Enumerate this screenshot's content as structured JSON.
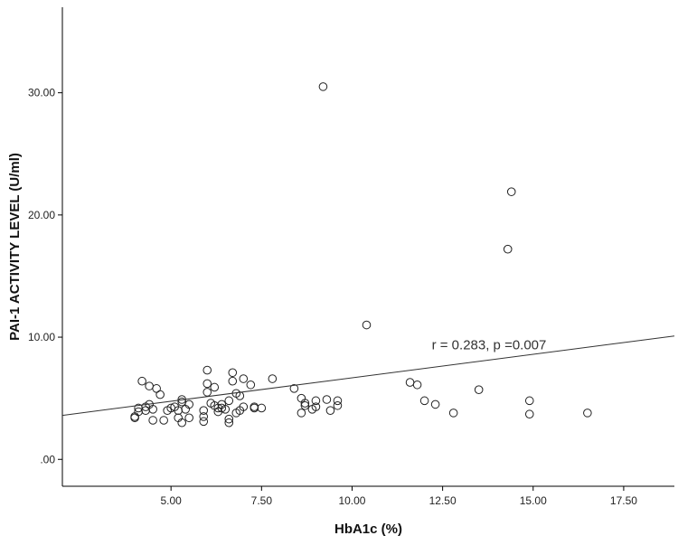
{
  "chart_data": {
    "type": "scatter",
    "title": "",
    "xlabel": "HbA1c (%)",
    "ylabel": "PAI-1 ACTIVITY LEVEL (U/ml)",
    "xlim": [
      2.0,
      18.9
    ],
    "ylim": [
      -2.2,
      37.0
    ],
    "x_ticks": [
      5,
      7.5,
      10,
      12.5,
      15,
      17.5
    ],
    "x_tick_labels": [
      "5.00",
      "7.50",
      "10.00",
      "12.50",
      "15.00",
      "17.50"
    ],
    "y_ticks": [
      0,
      10,
      20,
      30
    ],
    "y_tick_labels": [
      ".00",
      "10.00",
      "20.00",
      "30.00"
    ],
    "grid": false,
    "marker": "open-circle",
    "fit_line": {
      "x": [
        2.0,
        18.9
      ],
      "y": [
        3.6,
        10.1
      ]
    },
    "annotation": {
      "text": "r = 0.283, p =0.007",
      "x": 12.2,
      "y": 9.0
    },
    "points": [
      {
        "x": 4.0,
        "y": 3.4
      },
      {
        "x": 4.0,
        "y": 3.5
      },
      {
        "x": 4.1,
        "y": 4.2
      },
      {
        "x": 4.1,
        "y": 3.9
      },
      {
        "x": 4.2,
        "y": 6.4
      },
      {
        "x": 4.3,
        "y": 4.0
      },
      {
        "x": 4.3,
        "y": 4.3
      },
      {
        "x": 4.4,
        "y": 6.0
      },
      {
        "x": 4.4,
        "y": 4.5
      },
      {
        "x": 4.5,
        "y": 4.1
      },
      {
        "x": 4.5,
        "y": 3.2
      },
      {
        "x": 4.6,
        "y": 5.8
      },
      {
        "x": 4.7,
        "y": 5.3
      },
      {
        "x": 4.8,
        "y": 3.2
      },
      {
        "x": 4.9,
        "y": 4.0
      },
      {
        "x": 5.0,
        "y": 4.2
      },
      {
        "x": 5.1,
        "y": 4.3
      },
      {
        "x": 5.2,
        "y": 3.4
      },
      {
        "x": 5.2,
        "y": 4.0
      },
      {
        "x": 5.3,
        "y": 4.7
      },
      {
        "x": 5.3,
        "y": 4.9
      },
      {
        "x": 5.3,
        "y": 3.0
      },
      {
        "x": 5.4,
        "y": 4.1
      },
      {
        "x": 5.5,
        "y": 3.4
      },
      {
        "x": 5.5,
        "y": 4.5
      },
      {
        "x": 5.9,
        "y": 3.1
      },
      {
        "x": 5.9,
        "y": 3.5
      },
      {
        "x": 5.9,
        "y": 4.0
      },
      {
        "x": 6.0,
        "y": 7.3
      },
      {
        "x": 6.0,
        "y": 6.2
      },
      {
        "x": 6.0,
        "y": 5.5
      },
      {
        "x": 6.1,
        "y": 4.6
      },
      {
        "x": 6.2,
        "y": 4.4
      },
      {
        "x": 6.2,
        "y": 5.9
      },
      {
        "x": 6.3,
        "y": 4.2
      },
      {
        "x": 6.3,
        "y": 3.9
      },
      {
        "x": 6.4,
        "y": 4.5
      },
      {
        "x": 6.4,
        "y": 4.2
      },
      {
        "x": 6.5,
        "y": 4.1
      },
      {
        "x": 6.6,
        "y": 3.0
      },
      {
        "x": 6.6,
        "y": 3.3
      },
      {
        "x": 6.6,
        "y": 4.8
      },
      {
        "x": 6.7,
        "y": 7.1
      },
      {
        "x": 6.7,
        "y": 6.4
      },
      {
        "x": 6.8,
        "y": 5.4
      },
      {
        "x": 6.8,
        "y": 3.8
      },
      {
        "x": 6.9,
        "y": 4.0
      },
      {
        "x": 6.9,
        "y": 5.2
      },
      {
        "x": 7.0,
        "y": 6.6
      },
      {
        "x": 7.0,
        "y": 4.3
      },
      {
        "x": 7.2,
        "y": 6.1
      },
      {
        "x": 7.3,
        "y": 4.2
      },
      {
        "x": 7.3,
        "y": 4.3
      },
      {
        "x": 7.5,
        "y": 4.2
      },
      {
        "x": 7.8,
        "y": 6.6
      },
      {
        "x": 8.4,
        "y": 5.8
      },
      {
        "x": 8.6,
        "y": 5.0
      },
      {
        "x": 8.6,
        "y": 3.8
      },
      {
        "x": 8.7,
        "y": 4.4
      },
      {
        "x": 8.7,
        "y": 4.6
      },
      {
        "x": 8.9,
        "y": 4.1
      },
      {
        "x": 9.0,
        "y": 4.3
      },
      {
        "x": 9.0,
        "y": 4.8
      },
      {
        "x": 9.2,
        "y": 30.5
      },
      {
        "x": 9.3,
        "y": 4.9
      },
      {
        "x": 9.4,
        "y": 4.0
      },
      {
        "x": 9.6,
        "y": 4.4
      },
      {
        "x": 9.6,
        "y": 4.8
      },
      {
        "x": 10.4,
        "y": 11.0
      },
      {
        "x": 11.6,
        "y": 6.3
      },
      {
        "x": 11.8,
        "y": 6.1
      },
      {
        "x": 12.0,
        "y": 4.8
      },
      {
        "x": 12.3,
        "y": 4.5
      },
      {
        "x": 12.8,
        "y": 3.8
      },
      {
        "x": 13.5,
        "y": 5.7
      },
      {
        "x": 14.3,
        "y": 17.2
      },
      {
        "x": 14.4,
        "y": 21.9
      },
      {
        "x": 14.9,
        "y": 4.8
      },
      {
        "x": 14.9,
        "y": 3.7
      },
      {
        "x": 16.5,
        "y": 3.8
      }
    ]
  }
}
